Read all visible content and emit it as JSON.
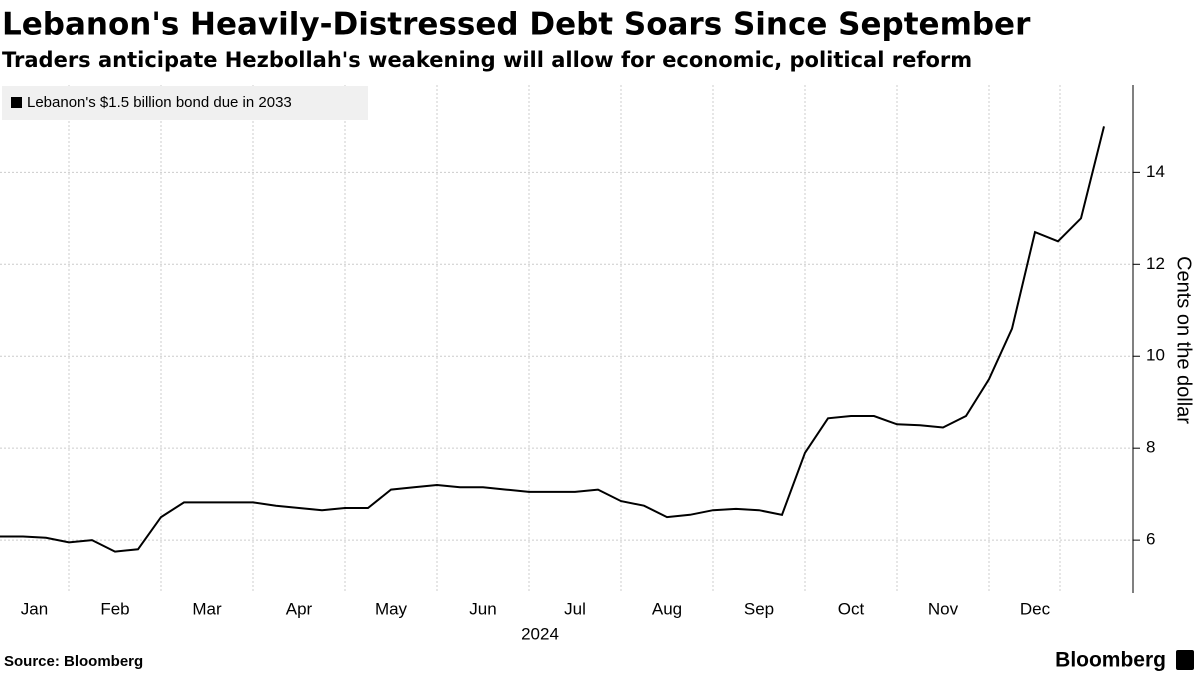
{
  "chart_data": {
    "type": "line",
    "title": "Lebanon's Heavily-Distressed Debt Soars Since September",
    "subtitle": "Traders anticipate Hezbollah's weakening will allow for economic, political reform",
    "ylabel": "Cents on the dollar",
    "xlabel": "2024",
    "source": "Source: Bloomberg",
    "brand": "Bloomberg",
    "legend": "top-left",
    "grid": true,
    "categories": [
      "Jan",
      null,
      null,
      "Feb",
      null,
      null,
      null,
      "Mar",
      null,
      null,
      null,
      "Apr",
      null,
      null,
      null,
      "May",
      null,
      null,
      null,
      "Jun",
      null,
      null,
      null,
      "Jul",
      null,
      null,
      null,
      "Aug",
      null,
      null,
      null,
      "Sep",
      null,
      null,
      null,
      "Oct",
      null,
      null,
      null,
      "Nov",
      null,
      null,
      null,
      "Dec",
      null,
      null,
      null,
      null,
      null
    ],
    "series": [
      {
        "name": "Lebanon's $1.5 billion bond due in 2033",
        "color": "#000000",
        "values": [
          6.08,
          6.08,
          6.05,
          5.95,
          6.0,
          5.75,
          5.8,
          6.5,
          6.82,
          6.82,
          6.82,
          6.82,
          6.75,
          6.7,
          6.65,
          6.7,
          6.7,
          7.1,
          7.15,
          7.2,
          7.15,
          7.15,
          7.1,
          7.05,
          7.05,
          7.05,
          7.1,
          6.85,
          6.75,
          6.5,
          6.55,
          6.65,
          6.68,
          6.65,
          6.55,
          7.9,
          8.65,
          8.7,
          8.7,
          8.52,
          8.5,
          8.45,
          8.7,
          9.5,
          10.6,
          12.7,
          12.5,
          13.0,
          15.0
        ]
      }
    ],
    "ylim": [
      4.85,
      15.9
    ],
    "yticks": [
      6,
      8,
      10,
      12,
      14
    ]
  }
}
